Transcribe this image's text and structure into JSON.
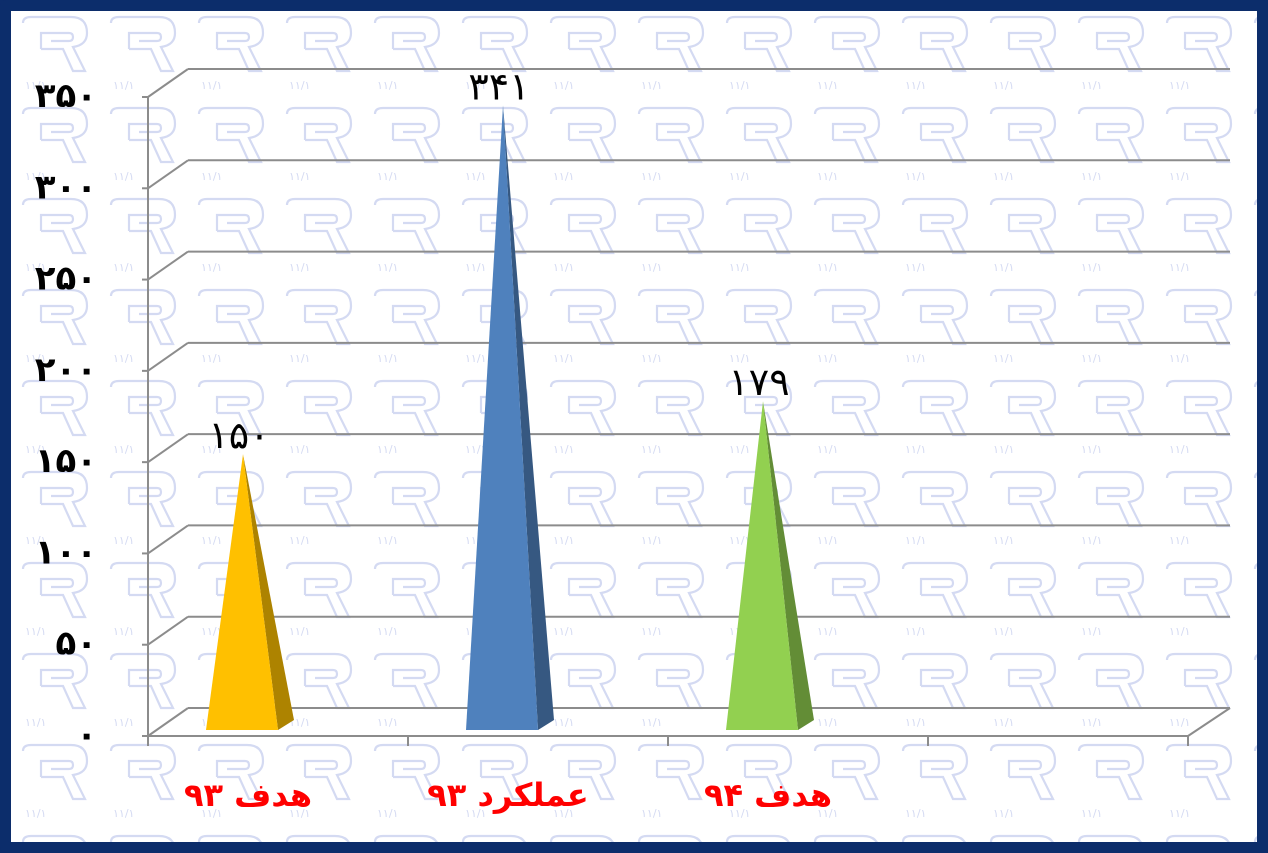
{
  "chart_data": {
    "type": "bar",
    "bar_shape": "3d-pyramid",
    "categories": [
      "هدف ۹۳",
      "عملکرد ۹۳",
      "هدف ۹۴"
    ],
    "values": [
      150,
      341,
      179
    ],
    "data_labels": [
      "۱۵۰",
      "۳۴۱",
      "۱۷۹"
    ],
    "bar_colors": [
      "#ffc000",
      "#4f81bd",
      "#92d050"
    ],
    "category_label_color": "#ff0000",
    "ylim": [
      0,
      350
    ],
    "yticks": [
      0,
      50,
      100,
      150,
      200,
      250,
      300,
      350
    ],
    "ytick_labels": [
      "۰",
      "۵۰",
      "۱۰۰",
      "۱۵۰",
      "۲۰۰",
      "۲۵۰",
      "۳۰۰",
      "۳۵۰"
    ],
    "grid": true,
    "title": "",
    "xlabel": "",
    "ylabel": ""
  }
}
